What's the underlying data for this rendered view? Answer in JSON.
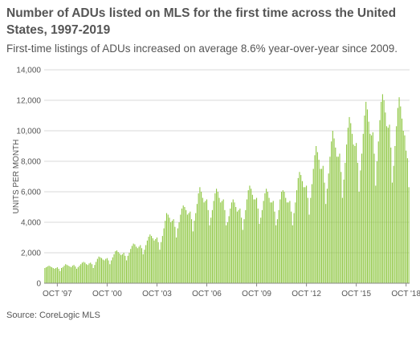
{
  "title": "Number of ADUs listed on MLS for the first time across the United States, 1997-2019",
  "subtitle": "First-time listings of ADUs increased on average 8.6% year-over-year since 2009.",
  "source": "Source: CoreLogic MLS",
  "colors": {
    "bar": "#8dc63f",
    "bar_stroke": "#6fa82a",
    "grid": "#d9d9d9",
    "text": "#555555"
  },
  "chart_data": {
    "type": "bar",
    "ylabel": "UNITS PER MONTH",
    "xlabel": "",
    "ylim": [
      0,
      14000
    ],
    "yticks": [
      0,
      2000,
      4000,
      6000,
      8000,
      10000,
      12000,
      14000
    ],
    "ytick_labels": [
      "0",
      "2,000",
      "4,000",
      "6,000",
      "8,000",
      "10,000",
      "12,000",
      "14,000"
    ],
    "xtick_labels": [
      "OCT '97",
      "OCT '00",
      "OCT '03",
      "OCT '06",
      "OCT '09",
      "OCT '12",
      "OCT '15",
      "OCT '18"
    ],
    "xtick_index": [
      9,
      45,
      81,
      117,
      153,
      189,
      225,
      261
    ],
    "grid": true,
    "x_start": "1997-01",
    "frequency": "monthly",
    "values": [
      1000,
      1050,
      1100,
      1150,
      1100,
      1050,
      1000,
      950,
      1000,
      1050,
      950,
      800,
      1000,
      1050,
      1150,
      1250,
      1200,
      1150,
      1100,
      1050,
      1150,
      1200,
      1100,
      950,
      1050,
      1150,
      1250,
      1350,
      1400,
      1350,
      1250,
      1200,
      1300,
      1350,
      1250,
      1000,
      1200,
      1400,
      1600,
      1750,
      1700,
      1650,
      1550,
      1500,
      1600,
      1650,
      1500,
      1250,
      1500,
      1700,
      1900,
      2100,
      2150,
      2050,
      1950,
      1850,
      1900,
      2000,
      1800,
      1500,
      1800,
      2000,
      2250,
      2450,
      2600,
      2550,
      2400,
      2300,
      2400,
      2500,
      2300,
      1900,
      2200,
      2500,
      2800,
      3050,
      3200,
      3100,
      2950,
      2800,
      2900,
      3000,
      2700,
      2200,
      2700,
      3100,
      3600,
      4100,
      4600,
      4500,
      4300,
      4000,
      4100,
      4200,
      3700,
      3000,
      3600,
      4000,
      4500,
      4900,
      5100,
      5000,
      4800,
      4500,
      4600,
      4700,
      4200,
      3400,
      4100,
      4600,
      5200,
      5900,
      6300,
      6000,
      5600,
      5300,
      5400,
      5500,
      4800,
      3800,
      4300,
      4800,
      5400,
      5900,
      6200,
      6000,
      5600,
      5300,
      5400,
      5500,
      4800,
      3800,
      4000,
      4400,
      4900,
      5300,
      5500,
      5300,
      5000,
      4700,
      4800,
      4900,
      4300,
      3500,
      4200,
      4800,
      5500,
      6100,
      6400,
      6200,
      5800,
      5500,
      5500,
      5600,
      4900,
      3900,
      4300,
      4800,
      5400,
      5900,
      6200,
      6000,
      5600,
      5300,
      5300,
      5400,
      4700,
      3800,
      4200,
      4800,
      5500,
      6000,
      6100,
      6000,
      5600,
      5300,
      5300,
      5400,
      4700,
      3800,
      4600,
      5300,
      6100,
      6900,
      7300,
      7100,
      6700,
      6300,
      6300,
      6400,
      5600,
      4500,
      5600,
      6500,
      7500,
      8400,
      9000,
      8600,
      8100,
      7500,
      7500,
      7700,
      6600,
      5200,
      6200,
      7200,
      8300,
      9300,
      10000,
      9500,
      8900,
      8300,
      8300,
      8500,
      7300,
      5600,
      6800,
      7900,
      9100,
      10200,
      10900,
      10500,
      9800,
      9100,
      9000,
      9200,
      7900,
      6000,
      7400,
      8500,
      9800,
      11000,
      11900,
      11400,
      10600,
      9800,
      9700,
      9900,
      8500,
      6400,
      8000,
      9300,
      10700,
      11900,
      12400,
      12000,
      11200,
      10300,
      10200,
      10400,
      8900,
      6600,
      7700,
      9000,
      10300,
      11500,
      12200,
      11600,
      10800,
      10000,
      9700,
      8700,
      8200,
      6300
    ]
  }
}
